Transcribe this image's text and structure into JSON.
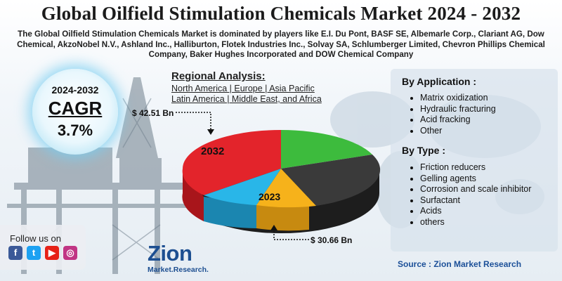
{
  "title": "Global Oilfield Stimulation Chemicals Market 2024 - 2032",
  "subtitle": "The Global Oilfield Stimulation Chemicals Market is dominated by players like E.I. Du Pont, BASF SE, Albemarle Corp., Clariant AG, Dow Chemical, AkzoNobel N.V., Ashland Inc., Halliburton, Flotek Industries Inc., Solvay SA, Schlumberger Limited, Chevron Phillips Chemical Company, Baker Hughes Incorporated and DOW Chemical Company",
  "cagr": {
    "period": "2024-2032",
    "label": "CAGR",
    "value": "3.7%"
  },
  "regional": {
    "title": "Regional Analysis:",
    "line1": "North America | Europe | Asia Pacific",
    "line2": "Latin America | Middle East, and Africa"
  },
  "pie": {
    "label_2032": "2032",
    "label_2023": "2023",
    "amount_2032": "$ 42.51 Bn",
    "amount_2023": "$ 30.66 Bn",
    "slice_colors": [
      "#e3242b",
      "#3dbb3d",
      "#3a3a3a",
      "#f6b21b",
      "#29b6e8"
    ]
  },
  "by_application": {
    "title": "By Application :",
    "items": [
      "Matrix oxidization",
      "Hydraulic fracturing",
      "Acid fracking",
      "Other"
    ]
  },
  "by_type": {
    "title": "By Type :",
    "items": [
      "Friction reducers",
      "Gelling agents",
      "Corrosion and scale inhibitor",
      "Surfactant",
      "Acids",
      "others"
    ]
  },
  "follow": {
    "label": "Follow us on",
    "icons": [
      "facebook-icon",
      "twitter-icon",
      "youtube-icon",
      "instagram-icon"
    ]
  },
  "logo": {
    "name": "Zion",
    "sub": "Market.Research."
  },
  "source": "Source : Zion Market Research",
  "colors": {
    "brand": "#1d4f91",
    "glow": "#8fd6f0"
  }
}
